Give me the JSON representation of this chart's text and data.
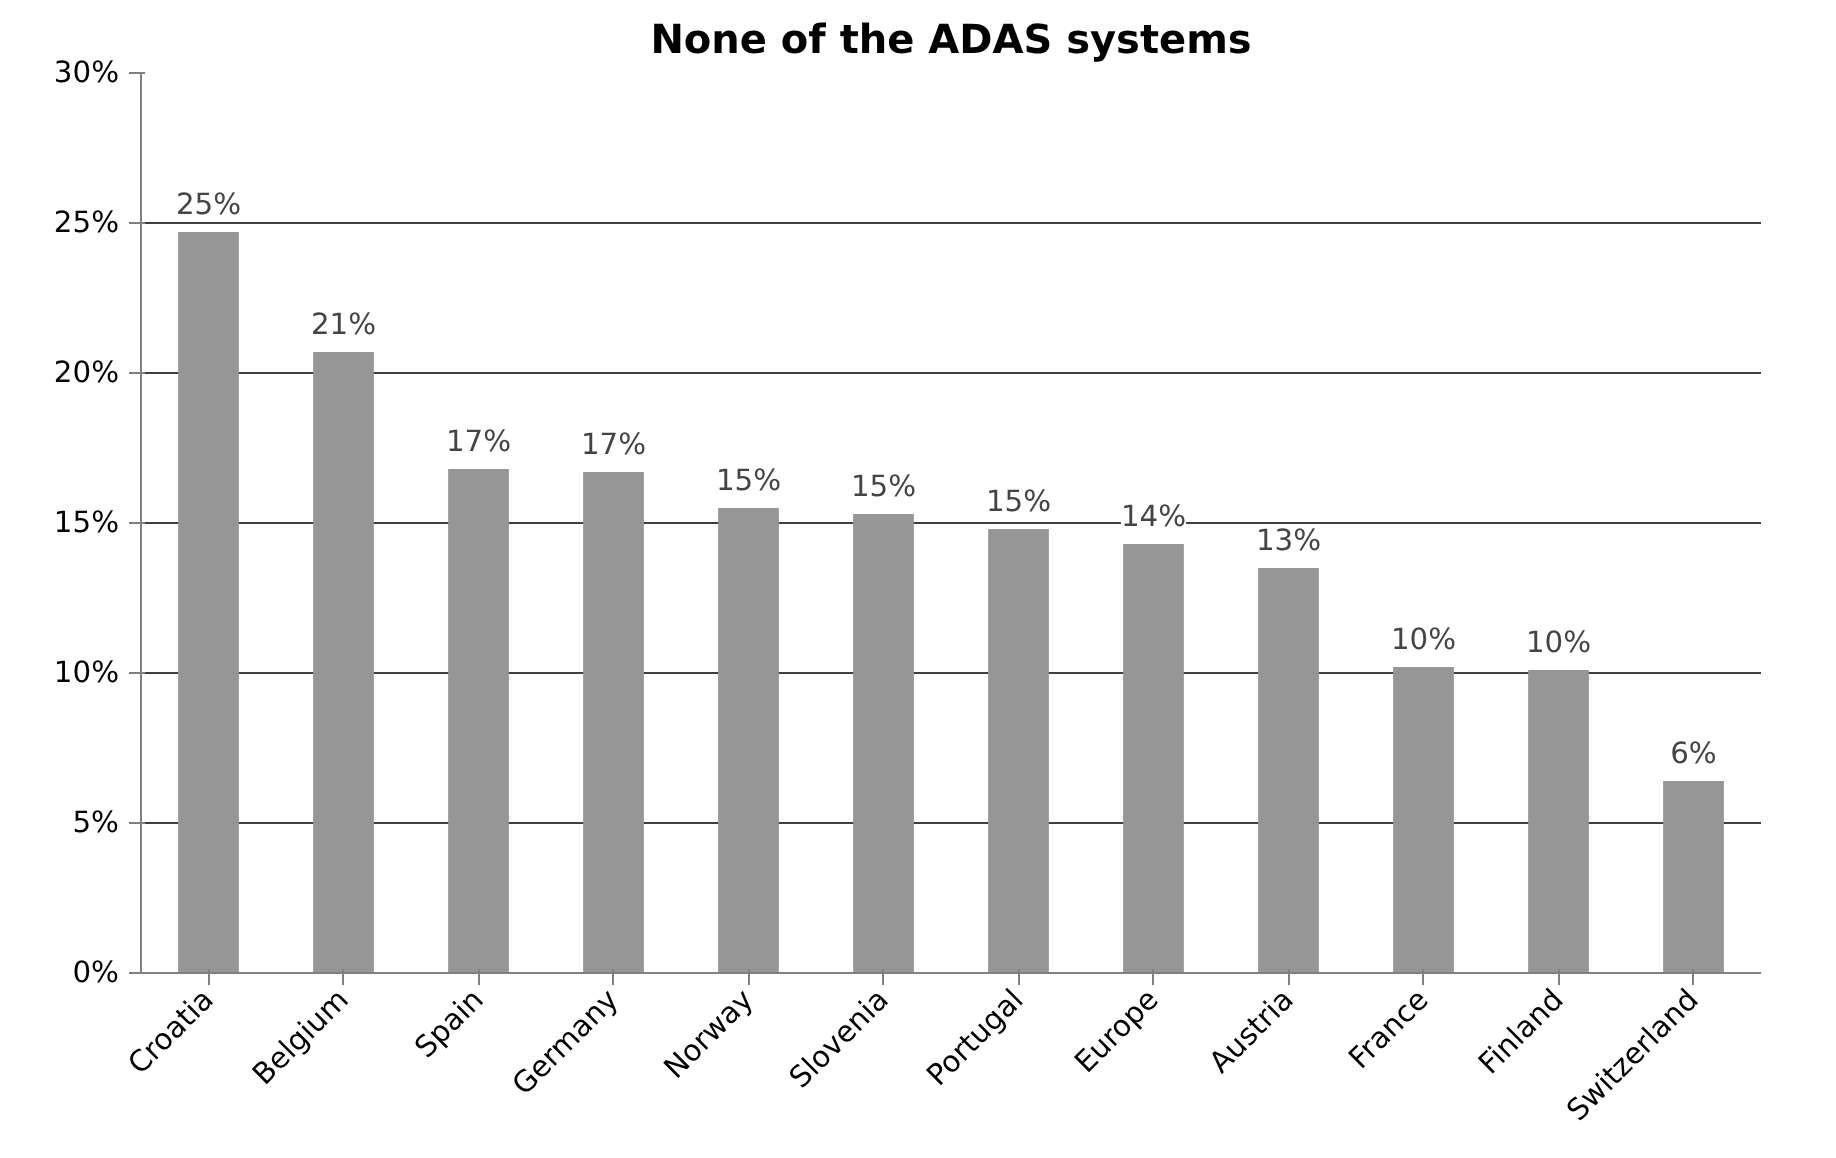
{
  "chart_data": {
    "type": "bar",
    "title": "None of the ADAS systems",
    "categories": [
      "Croatia",
      "Belgium",
      "Spain",
      "Germany",
      "Norway",
      "Slovenia",
      "Portugal",
      "Europe",
      "Austria",
      "France",
      "Finland",
      "Switzerland"
    ],
    "values": [
      24.7,
      20.7,
      16.8,
      16.7,
      15.5,
      15.3,
      14.8,
      14.3,
      13.5,
      10.2,
      10.1,
      6.4
    ],
    "value_labels": [
      "25%",
      "21%",
      "17%",
      "17%",
      "15%",
      "15%",
      "15%",
      "14%",
      "13%",
      "10%",
      "10%",
      "6%"
    ],
    "color": "#969696",
    "ylim": [
      0,
      30
    ],
    "yticks": [
      {
        "value": 0,
        "label": "0%"
      },
      {
        "value": 5,
        "label": "5%"
      },
      {
        "value": 10,
        "label": "10%"
      },
      {
        "value": 15,
        "label": "15%"
      },
      {
        "value": 20,
        "label": "20%"
      },
      {
        "value": 25,
        "label": "25%"
      },
      {
        "value": 30,
        "label": "30%"
      }
    ],
    "grid": "y"
  }
}
